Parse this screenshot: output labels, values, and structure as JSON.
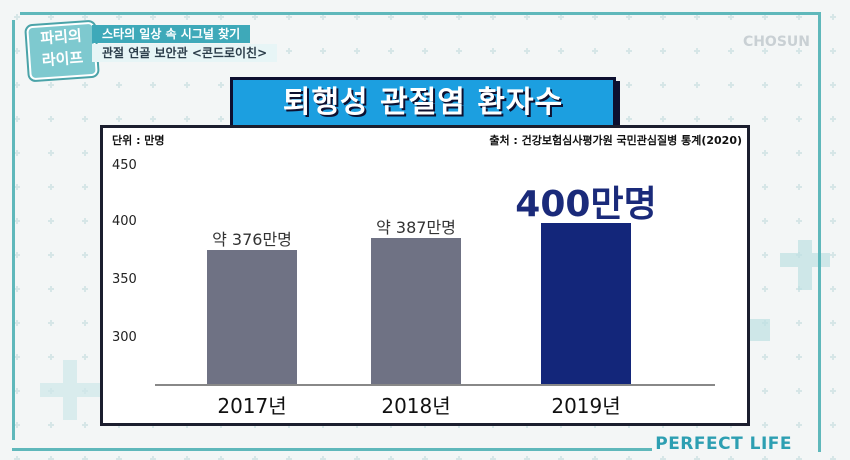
{
  "show": {
    "logo_line1": "파리의",
    "logo_line2": "라이프",
    "caption_line1": "스타의 일상 속 시그널 찾기",
    "caption_line2": "관절 연골 보안관 <콘드로이친>",
    "watermark": "CHOSUN",
    "brand": "PERFECT LIFE"
  },
  "colors": {
    "bar_default": "#6f7284",
    "bar_highlight": "#13267a",
    "title_bg": "#1c9fe0",
    "accent": "#5fb8bb"
  },
  "chart_data": {
    "type": "bar",
    "title": "퇴행성 관절염 환자수",
    "unit_label": "단위 : 만명",
    "source": "출처 : 건강보험심사평가원 국민관심질병 통계(2020)",
    "categories": [
      "2017년",
      "2018년",
      "2019년"
    ],
    "values": [
      376,
      387,
      400
    ],
    "data_labels": [
      "약 376만명",
      "약 387만명",
      "400만명"
    ],
    "highlight_index": 2,
    "yticks": [
      "450",
      "400",
      "350",
      "300"
    ],
    "ylim": [
      270,
      450
    ],
    "grid": false,
    "legend": "none"
  }
}
